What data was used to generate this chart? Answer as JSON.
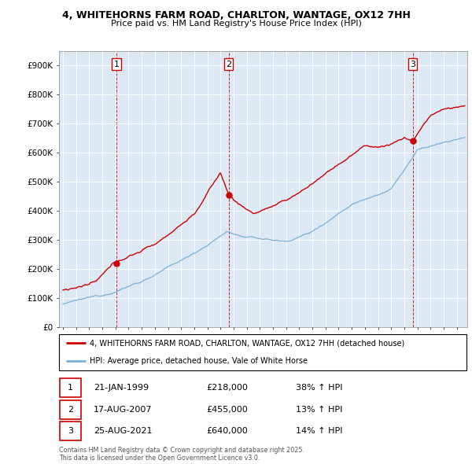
{
  "title_line1": "4, WHITEHORNS FARM ROAD, CHARLTON, WANTAGE, OX12 7HH",
  "title_line2": "Price paid vs. HM Land Registry's House Price Index (HPI)",
  "ylim": [
    0,
    950000
  ],
  "yticks": [
    0,
    100000,
    200000,
    300000,
    400000,
    500000,
    600000,
    700000,
    800000,
    900000
  ],
  "ytick_labels": [
    "£0",
    "£100K",
    "£200K",
    "£300K",
    "£400K",
    "£500K",
    "£600K",
    "£700K",
    "£800K",
    "£900K"
  ],
  "sale_times": [
    1999.07,
    2007.62,
    2021.65
  ],
  "sale_prices": [
    218000,
    455000,
    640000
  ],
  "sale_labels": [
    "1",
    "2",
    "3"
  ],
  "sale_hpi_pct": [
    "38% ↑ HPI",
    "13% ↑ HPI",
    "14% ↑ HPI"
  ],
  "sale_date_str": [
    "21-JAN-1999",
    "17-AUG-2007",
    "25-AUG-2021"
  ],
  "sale_prices_str": [
    "£218,000",
    "£455,000",
    "£640,000"
  ],
  "red_line_color": "#cc0000",
  "blue_line_color": "#7bafd4",
  "bg_color": "#dce9f5",
  "vline_color": "#cc0000",
  "grid_color": "#ffffff",
  "legend_label_red": "4, WHITEHORNS FARM ROAD, CHARLTON, WANTAGE, OX12 7HH (detached house)",
  "legend_label_blue": "HPI: Average price, detached house, Vale of White Horse",
  "footer": "Contains HM Land Registry data © Crown copyright and database right 2025.\nThis data is licensed under the Open Government Licence v3.0.",
  "xlim_start": 1994.7,
  "xlim_end": 2025.8
}
